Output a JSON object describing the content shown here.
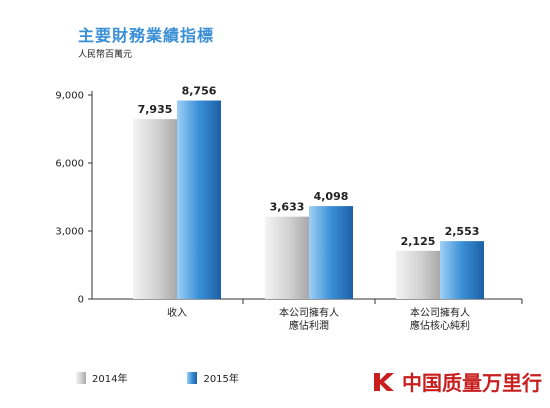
{
  "chart_data": {
    "type": "bar",
    "title": "主要財務業績指標",
    "unit_label": "人民幣百萬元",
    "categories": [
      [
        "收入"
      ],
      [
        "本公司擁有人",
        "應佔利潤"
      ],
      [
        "本公司擁有人",
        "應佔核心純利"
      ]
    ],
    "series": [
      {
        "name": "2014年",
        "color": "#c8c8c8",
        "values": [
          7935,
          3633,
          2125
        ],
        "labels": [
          "7,935",
          "3,633",
          "2,125"
        ]
      },
      {
        "name": "2015年",
        "color": "#2f86d0",
        "values": [
          8756,
          4098,
          2553
        ],
        "labels": [
          "8,756",
          "4,098",
          "2,553"
        ]
      }
    ],
    "yticks": [
      0,
      3000,
      6000,
      9000
    ],
    "ytick_labels": [
      "0",
      "3,000",
      "6,000",
      "9,000"
    ],
    "ylim": [
      0,
      9000
    ],
    "grid": false,
    "legend_position": "bottom-left"
  },
  "watermark": {
    "text": "中国质量万里行",
    "color": "#c81e1e"
  }
}
